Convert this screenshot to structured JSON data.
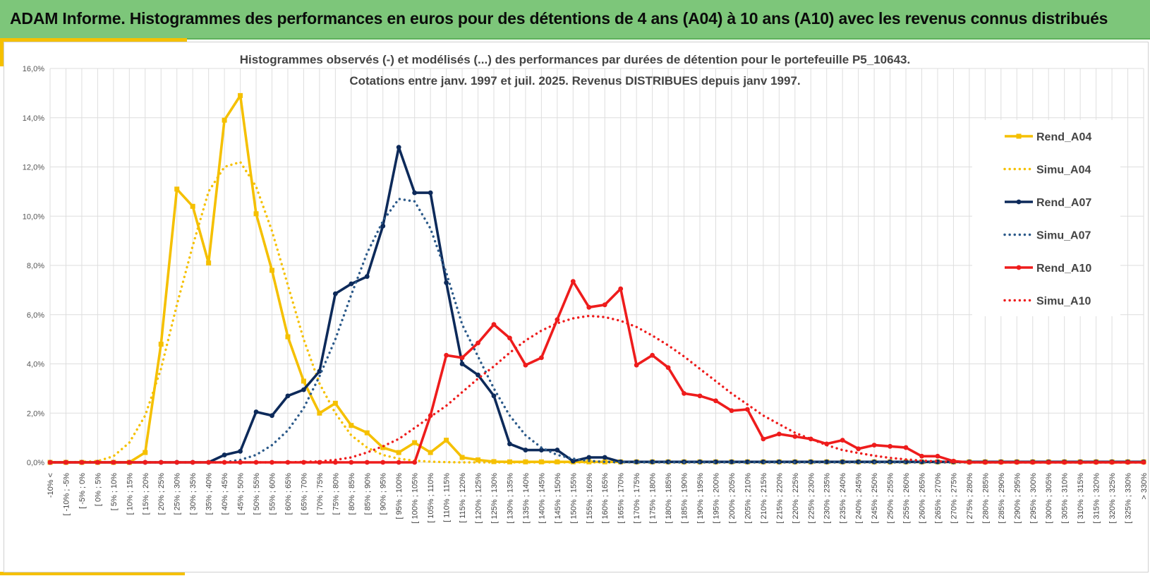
{
  "header": {
    "title": "ADAM Informe. Histogrammes des performances en euros pour des détentions de 4 ans (A04) à 10 ans (A10) avec les revenus connus distribués",
    "background": "#7dc67a"
  },
  "chart_data": {
    "type": "line",
    "title_line1": "Histogrammes observés (-) et modélisés (...) des performances par durées de détention pour le portefeuille P5_10643.",
    "title_line2": "Cotations entre janv. 1997 et juil. 2025. Revenus DISTRIBUES depuis janv 1997.",
    "xlabel": "",
    "ylabel": "",
    "ylim": [
      0,
      16
    ],
    "yticks": [
      0,
      2,
      4,
      6,
      8,
      10,
      12,
      14,
      16
    ],
    "ytick_labels": [
      "0,0%",
      "2,0%",
      "4,0%",
      "6,0%",
      "8,0%",
      "10,0%",
      "12,0%",
      "14,0%",
      "16,0%"
    ],
    "grid": true,
    "legend_position": "right",
    "categories": [
      "-10% <",
      "[ -10% ; -5%",
      "[ -5% ; 0%",
      "[ 0% ; 5%",
      "[ 5% ; 10%",
      "[ 10% ; 15%",
      "[ 15% ; 20%",
      "[ 20% ; 25%",
      "[ 25% ; 30%",
      "[ 30% ; 35%",
      "[ 35% ; 40%",
      "[ 40% ; 45%",
      "[ 45% ; 50%",
      "[ 50% ; 55%",
      "[ 55% ; 60%",
      "[ 60% ; 65%",
      "[ 65% ; 70%",
      "[ 70% ; 75%",
      "[ 75% ; 80%",
      "[ 80% ; 85%",
      "[ 85% ; 90%",
      "[ 90% ; 95%",
      "[ 95% ; 100%",
      "[ 100% ; 105%",
      "[ 105% ; 110%",
      "[ 110% ; 115%",
      "[ 115% ; 120%",
      "[ 120% ; 125%",
      "[ 125% ; 130%",
      "[ 130% ; 135%",
      "[ 135% ; 140%",
      "[ 140% ; 145%",
      "[ 145% ; 150%",
      "[ 150% ; 155%",
      "[ 155% ; 160%",
      "[ 160% ; 165%",
      "[ 165% ; 170%",
      "[ 170% ; 175%",
      "[ 175% ; 180%",
      "[ 180% ; 185%",
      "[ 185% ; 190%",
      "[ 190% ; 195%",
      "[ 195% ; 200%",
      "[ 200% ; 205%",
      "[ 205% ; 210%",
      "[ 210% ; 215%",
      "[ 215% ; 220%",
      "[ 220% ; 225%",
      "[ 225% ; 230%",
      "[ 230% ; 235%",
      "[ 235% ; 240%",
      "[ 240% ; 245%",
      "[ 245% ; 250%",
      "[ 250% ; 255%",
      "[ 255% ; 260%",
      "[ 260% ; 265%",
      "[ 265% ; 270%",
      "[ 270% ; 275%",
      "[ 275% ; 280%",
      "[ 280% ; 285%",
      "[ 285% ; 290%",
      "[ 290% ; 295%",
      "[ 295% ; 300%",
      "[ 300% ; 305%",
      "[ 305% ; 310%",
      "[ 310% ; 315%",
      "[ 315% ; 320%",
      "[ 320% ; 325%",
      "[ 325% ; 330%",
      "> 330%"
    ],
    "series": [
      {
        "name": "Rend_A04",
        "style": "solid",
        "marker": "square",
        "color": "#f5c000",
        "values": [
          0,
          0,
          0,
          0,
          0,
          0,
          0.4,
          4.8,
          11.1,
          10.4,
          8.1,
          13.9,
          14.9,
          10.1,
          7.8,
          5.1,
          3.3,
          2.0,
          2.4,
          1.5,
          1.2,
          0.6,
          0.4,
          0.8,
          0.4,
          0.9,
          0.2,
          0.1,
          0.03,
          0.02,
          0.02,
          0.02,
          0.02,
          0.02,
          0.02,
          0.02,
          0.02,
          0.02,
          0.02,
          0.02,
          0.02,
          0.02,
          0.02,
          0.02,
          0.02,
          0.02,
          0.02,
          0.02,
          0.02,
          0.02,
          0.02,
          0.02,
          0.02,
          0.02,
          0.02,
          0.02,
          0.02,
          0.02,
          0.02,
          0.02,
          0.02,
          0.02,
          0.02,
          0.02,
          0.02,
          0.02,
          0.02,
          0.02,
          0.02,
          0.02
        ]
      },
      {
        "name": "Simu_A04",
        "style": "dotted",
        "marker": "none",
        "color": "#f5c000",
        "values": [
          0,
          0,
          0.02,
          0.05,
          0.25,
          0.8,
          1.9,
          3.8,
          6.4,
          8.8,
          11.0,
          12.0,
          12.2,
          11.2,
          9.4,
          7.2,
          5.0,
          3.2,
          2.0,
          1.1,
          0.6,
          0.3,
          0.15,
          0.07,
          0.03,
          0.01,
          0,
          0,
          0,
          0,
          0,
          0,
          0,
          0,
          0,
          0,
          0,
          0,
          0,
          0,
          0,
          0,
          0,
          0,
          0,
          0,
          0,
          0,
          0,
          0,
          0,
          0,
          0,
          0,
          0,
          0,
          0,
          0,
          0,
          0,
          0,
          0,
          0,
          0,
          0,
          0,
          0,
          0,
          0,
          0
        ]
      },
      {
        "name": "Rend_A07",
        "style": "solid",
        "marker": "circle",
        "color": "#0d2a5a",
        "values": [
          0,
          0,
          0,
          0,
          0,
          0,
          0,
          0,
          0,
          0,
          0,
          0.3,
          0.45,
          2.05,
          1.9,
          2.7,
          2.95,
          3.7,
          6.85,
          7.25,
          7.55,
          9.6,
          12.8,
          10.95,
          10.95,
          7.3,
          4.0,
          3.55,
          2.7,
          0.75,
          0.5,
          0.5,
          0.5,
          0.05,
          0.2,
          0.2,
          0.02,
          0.02,
          0.02,
          0.02,
          0.02,
          0.02,
          0.02,
          0.02,
          0.02,
          0.02,
          0.02,
          0.02,
          0.02,
          0.02,
          0.02,
          0.02,
          0.02,
          0.02,
          0.02,
          0.02,
          0.02,
          0.02,
          0.02,
          0.02,
          0.02,
          0.02,
          0.02,
          0.02,
          0.02,
          0.02,
          0.02,
          0.02,
          0.02,
          0.02
        ]
      },
      {
        "name": "Simu_A07",
        "style": "dotted",
        "marker": "none",
        "color": "#2c5a8a",
        "values": [
          0,
          0,
          0,
          0,
          0,
          0,
          0,
          0,
          0,
          0,
          0,
          0,
          0.1,
          0.3,
          0.7,
          1.3,
          2.2,
          3.5,
          5.0,
          6.8,
          8.5,
          9.8,
          10.7,
          10.6,
          9.5,
          7.7,
          5.6,
          4.3,
          3.0,
          1.9,
          1.1,
          0.6,
          0.3,
          0.15,
          0.06,
          0.02,
          0.01,
          0,
          0,
          0,
          0,
          0,
          0,
          0,
          0,
          0,
          0,
          0,
          0,
          0,
          0,
          0,
          0,
          0,
          0,
          0,
          0,
          0,
          0,
          0,
          0,
          0,
          0,
          0,
          0,
          0,
          0,
          0,
          0,
          0
        ]
      },
      {
        "name": "Rend_A10",
        "style": "solid",
        "marker": "circle",
        "color": "#ee1c1c",
        "values": [
          0,
          0,
          0,
          0,
          0,
          0,
          0,
          0,
          0,
          0,
          0,
          0,
          0,
          0,
          0,
          0,
          0,
          0,
          0,
          0,
          0,
          0,
          0,
          0,
          1.9,
          4.35,
          4.25,
          4.85,
          5.6,
          5.05,
          3.95,
          4.25,
          5.8,
          7.35,
          6.3,
          6.4,
          7.05,
          3.95,
          4.35,
          3.85,
          2.8,
          2.7,
          2.5,
          2.1,
          2.15,
          0.95,
          1.15,
          1.05,
          0.95,
          0.75,
          0.9,
          0.55,
          0.7,
          0.65,
          0.6,
          0.25,
          0.25,
          0.05,
          0,
          0,
          0,
          0,
          0,
          0,
          0,
          0,
          0,
          0,
          0,
          0
        ]
      },
      {
        "name": "Simu_A10",
        "style": "dotted",
        "marker": "none",
        "color": "#ee1c1c",
        "values": [
          0,
          0,
          0,
          0,
          0,
          0,
          0,
          0,
          0,
          0,
          0,
          0,
          0,
          0,
          0,
          0,
          0.02,
          0.04,
          0.1,
          0.2,
          0.4,
          0.65,
          0.95,
          1.4,
          1.85,
          2.3,
          2.85,
          3.4,
          3.9,
          4.45,
          4.95,
          5.35,
          5.65,
          5.85,
          5.95,
          5.9,
          5.75,
          5.5,
          5.15,
          4.75,
          4.3,
          3.8,
          3.3,
          2.8,
          2.35,
          1.9,
          1.55,
          1.2,
          0.95,
          0.7,
          0.5,
          0.38,
          0.27,
          0.18,
          0.12,
          0.07,
          0.04,
          0.02,
          0.01,
          0,
          0,
          0,
          0,
          0,
          0,
          0,
          0,
          0,
          0,
          0
        ]
      }
    ]
  }
}
